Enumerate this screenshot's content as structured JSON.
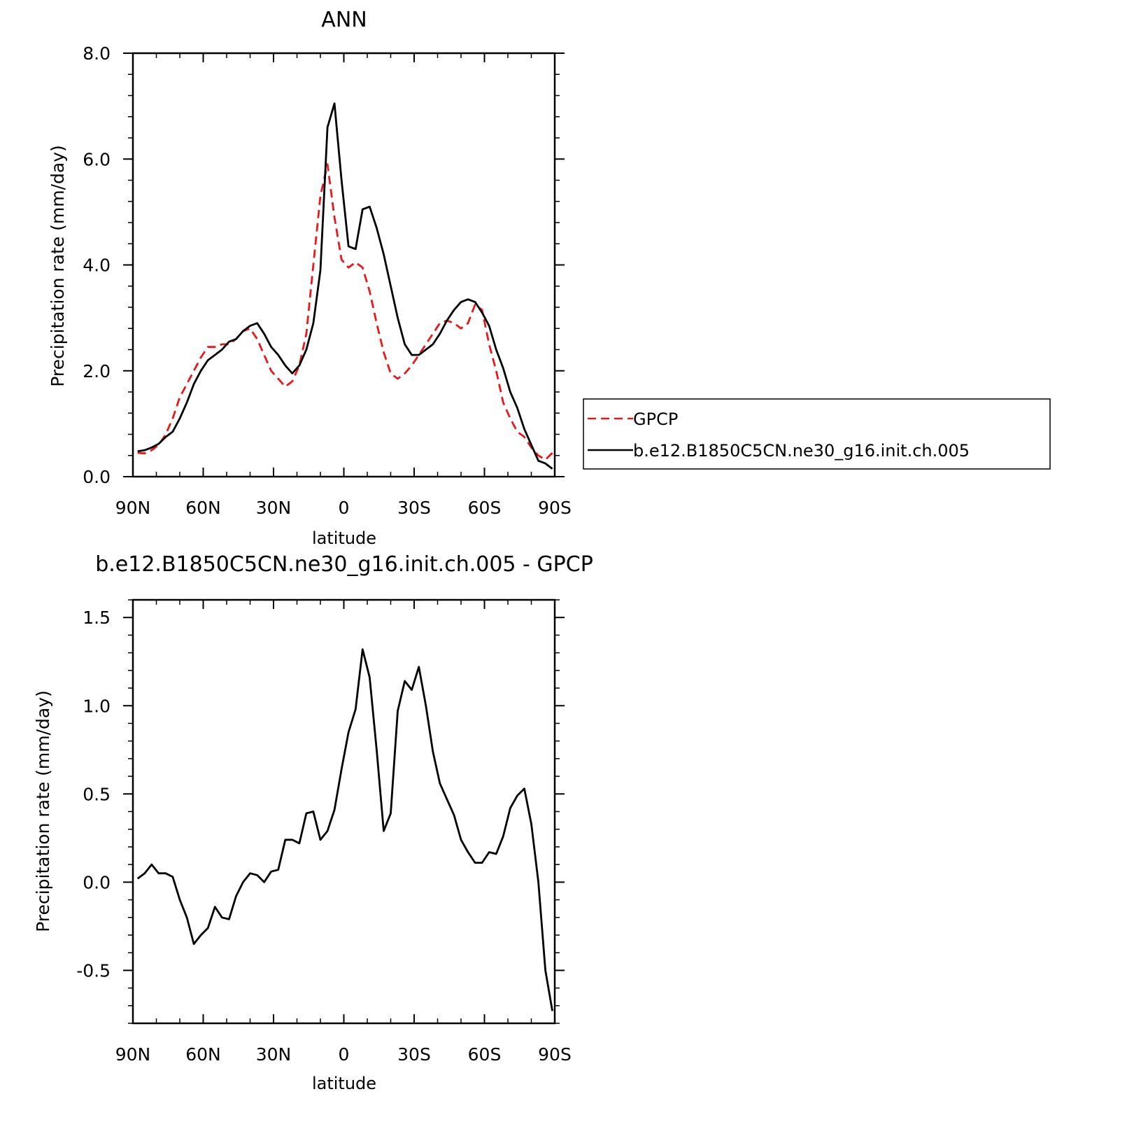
{
  "chart_data": [
    {
      "type": "line",
      "title": "ANN",
      "xlabel": "latitude",
      "ylabel": "Precipitation rate (mm/day)",
      "xlim": [
        90,
        -90
      ],
      "ylim": [
        0.0,
        8.0
      ],
      "xticks": [
        90,
        60,
        30,
        0,
        -30,
        -60,
        -90
      ],
      "xtick_labels": [
        "90N",
        "60N",
        "30N",
        "0",
        "30S",
        "60S",
        "90S"
      ],
      "yticks": [
        0.0,
        2.0,
        4.0,
        6.0,
        8.0
      ],
      "ytick_labels": [
        "0.0",
        "2.0",
        "4.0",
        "6.0",
        "8.0"
      ],
      "legend_position": "outside-right",
      "series": [
        {
          "name": "GPCP",
          "color": "#e41a1c",
          "style": "dashed",
          "x": [
            88,
            85,
            82,
            79,
            76,
            73,
            70,
            67,
            64,
            61,
            58,
            55,
            52,
            49,
            46,
            43,
            40,
            37,
            34,
            31,
            28,
            25,
            22,
            19,
            16,
            13,
            10,
            7,
            4,
            1,
            -2,
            -5,
            -8,
            -11,
            -14,
            -17,
            -20,
            -23,
            -26,
            -29,
            -32,
            -35,
            -38,
            -41,
            -44,
            -47,
            -50,
            -53,
            -56,
            -59,
            -62,
            -65,
            -68,
            -71,
            -74,
            -77,
            -80,
            -83,
            -86,
            -89
          ],
          "y": [
            0.45,
            0.44,
            0.5,
            0.6,
            0.8,
            1.1,
            1.5,
            1.75,
            2.0,
            2.25,
            2.45,
            2.45,
            2.5,
            2.5,
            2.6,
            2.75,
            2.8,
            2.6,
            2.3,
            2.0,
            1.85,
            1.7,
            1.8,
            2.1,
            2.7,
            4.0,
            5.3,
            5.9,
            4.9,
            4.1,
            3.95,
            4.05,
            3.95,
            3.5,
            2.9,
            2.35,
            1.95,
            1.85,
            1.95,
            2.1,
            2.3,
            2.5,
            2.7,
            2.9,
            2.95,
            2.9,
            2.8,
            2.9,
            3.25,
            3.15,
            2.5,
            2.0,
            1.4,
            1.1,
            0.85,
            0.75,
            0.55,
            0.4,
            0.32,
            0.45
          ]
        },
        {
          "name": "b.e12.B1850C5CN.ne30_g16.init.ch.005",
          "color": "#000000",
          "style": "solid",
          "x": [
            88,
            85,
            82,
            79,
            76,
            73,
            70,
            67,
            64,
            61,
            58,
            55,
            52,
            49,
            46,
            43,
            40,
            37,
            34,
            31,
            28,
            25,
            22,
            19,
            16,
            13,
            10,
            7,
            4,
            1,
            -2,
            -5,
            -8,
            -11,
            -14,
            -17,
            -20,
            -23,
            -26,
            -29,
            -32,
            -35,
            -38,
            -41,
            -44,
            -47,
            -50,
            -53,
            -56,
            -59,
            -62,
            -65,
            -68,
            -71,
            -74,
            -77,
            -80,
            -83,
            -86,
            -89
          ],
          "y": [
            0.48,
            0.5,
            0.55,
            0.62,
            0.75,
            0.85,
            1.1,
            1.4,
            1.75,
            2.0,
            2.2,
            2.3,
            2.4,
            2.55,
            2.6,
            2.75,
            2.85,
            2.9,
            2.7,
            2.45,
            2.3,
            2.1,
            1.95,
            2.1,
            2.4,
            2.9,
            3.9,
            6.6,
            7.05,
            5.6,
            4.35,
            4.3,
            5.05,
            5.1,
            4.7,
            4.2,
            3.6,
            3.0,
            2.5,
            2.3,
            2.3,
            2.4,
            2.5,
            2.7,
            2.95,
            3.15,
            3.3,
            3.35,
            3.3,
            3.1,
            2.85,
            2.4,
            2.05,
            1.6,
            1.3,
            0.9,
            0.6,
            0.3,
            0.25,
            0.15
          ]
        }
      ]
    },
    {
      "type": "line",
      "title": "b.e12.B1850C5CN.ne30_g16.init.ch.005 - GPCP",
      "xlabel": "latitude",
      "ylabel": "Precipitation rate (mm/day)",
      "xlim": [
        90,
        -90
      ],
      "ylim": [
        -0.8,
        1.6
      ],
      "xticks": [
        90,
        60,
        30,
        0,
        -30,
        -60,
        -90
      ],
      "xtick_labels": [
        "90N",
        "60N",
        "30N",
        "0",
        "30S",
        "60S",
        "90S"
      ],
      "yticks": [
        -0.5,
        0.0,
        0.5,
        1.0,
        1.5
      ],
      "ytick_labels": [
        "-0.5",
        "0.0",
        "0.5",
        "1.0",
        "1.5"
      ],
      "series": [
        {
          "name": "b.e12.B1850C5CN.ne30_g16.init.ch.005 - GPCP",
          "color": "#000000",
          "style": "solid",
          "x": [
            88,
            85,
            82,
            79,
            76,
            73,
            70,
            67,
            64,
            61,
            58,
            55,
            52,
            49,
            46,
            43,
            40,
            37,
            34,
            31,
            28,
            25,
            22,
            19,
            16,
            13,
            10,
            7,
            4,
            1,
            -2,
            -5,
            -8,
            -11,
            -14,
            -17,
            -20,
            -23,
            -26,
            -29,
            -32,
            -35,
            -38,
            -41,
            -44,
            -47,
            -50,
            -53,
            -56,
            -59,
            -62,
            -65,
            -68,
            -71,
            -74,
            -77,
            -80,
            -83,
            -86,
            -89
          ],
          "y": [
            0.02,
            0.05,
            0.1,
            0.05,
            0.05,
            0.03,
            -0.1,
            -0.2,
            -0.35,
            -0.3,
            -0.26,
            -0.14,
            -0.2,
            -0.21,
            -0.08,
            0.0,
            0.05,
            0.04,
            0.0,
            0.06,
            0.07,
            0.24,
            0.24,
            0.22,
            0.39,
            0.4,
            0.24,
            0.29,
            0.41,
            0.64,
            0.85,
            0.98,
            1.32,
            1.16,
            0.75,
            0.29,
            0.39,
            0.97,
            1.14,
            1.09,
            1.22,
            1.0,
            0.74,
            0.56,
            0.47,
            0.38,
            0.24,
            0.17,
            0.11,
            0.11,
            0.17,
            0.16,
            0.26,
            0.42,
            0.49,
            0.53,
            0.33,
            0.0,
            -0.5,
            -0.73
          ]
        }
      ]
    }
  ]
}
